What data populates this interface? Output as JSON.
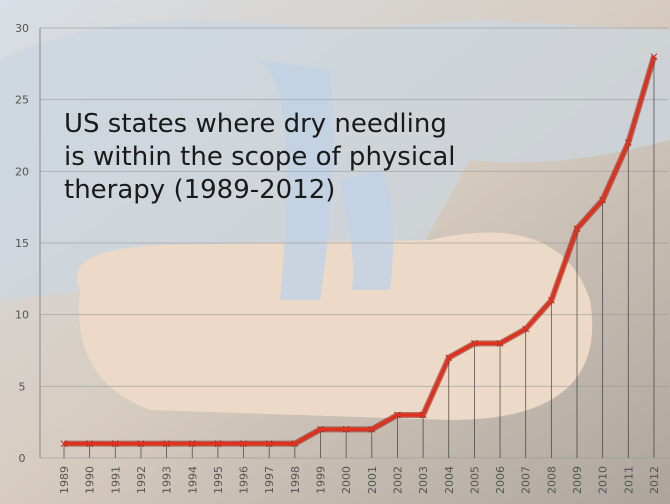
{
  "chart_data": {
    "type": "line",
    "title": "US states where dry needling is within the scope of physical therapy (1989-2012)",
    "categories": [
      "1989",
      "1990",
      "1991",
      "1992",
      "1993",
      "1994",
      "1995",
      "1996",
      "1997",
      "1998",
      "1999",
      "2000",
      "2001",
      "2002",
      "2003",
      "2004",
      "2005",
      "2006",
      "2007",
      "2008",
      "2009",
      "2010",
      "2011",
      "2012"
    ],
    "values": [
      1,
      1,
      1,
      1,
      1,
      1,
      1,
      1,
      1,
      1,
      2,
      2,
      2,
      3,
      3,
      7,
      8,
      8,
      9,
      11,
      16,
      18,
      22,
      28
    ],
    "color": "#e0301e",
    "ylim": [
      0,
      30
    ],
    "yticks": [
      0,
      5,
      10,
      15,
      20,
      25,
      30
    ],
    "grid": true
  }
}
